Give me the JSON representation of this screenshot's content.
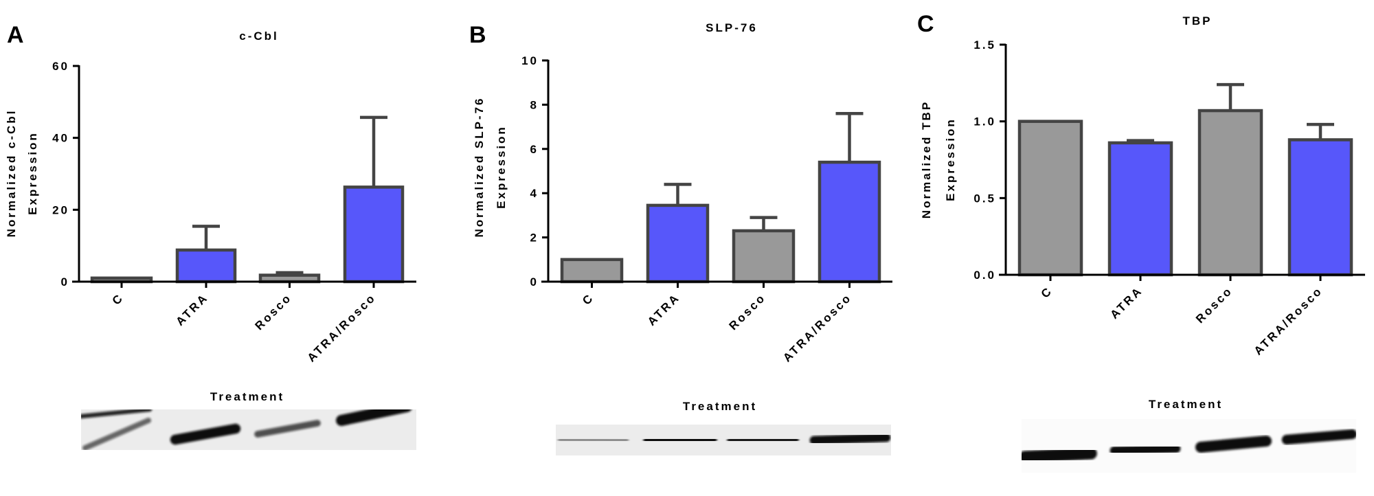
{
  "colors": {
    "control": "#999999",
    "treated": "#5757FA",
    "outline": "#444444",
    "axis": "#000000"
  },
  "chart_data": [
    {
      "panel": "A",
      "type": "bar",
      "title": "c-Cbl",
      "ylabel_lines": [
        "Normalized c-Cbl",
        "Expression"
      ],
      "xlabel": "Treatment",
      "categories": [
        "C",
        "ATRA",
        "Rosco",
        "ATRA/Rosco"
      ],
      "values": [
        1.0,
        8.8,
        1.8,
        26.3
      ],
      "error_upper": [
        1.0,
        15.4,
        2.5,
        45.7
      ],
      "bar_colors": [
        "control",
        "treated",
        "control",
        "treated"
      ],
      "ylim": [
        0,
        60
      ],
      "yticks": [
        "0",
        "20",
        "40",
        "60"
      ],
      "ytick_values": [
        0,
        20,
        40,
        60
      ],
      "grid": false
    },
    {
      "panel": "B",
      "type": "bar",
      "title": "SLP-76",
      "ylabel_lines": [
        "Normalized SLP-76",
        "Expression"
      ],
      "xlabel": "Treatment",
      "categories": [
        "C",
        "ATRA",
        "Rosco",
        "ATRA/Rosco"
      ],
      "values": [
        1.0,
        3.45,
        2.3,
        5.4
      ],
      "error_upper": [
        1.0,
        4.4,
        2.9,
        7.6
      ],
      "bar_colors": [
        "control",
        "treated",
        "control",
        "treated"
      ],
      "ylim": [
        0,
        10
      ],
      "yticks": [
        "0",
        "2",
        "4",
        "6",
        "8",
        "10"
      ],
      "ytick_values": [
        0,
        2,
        4,
        6,
        8,
        10
      ],
      "grid": false
    },
    {
      "panel": "C",
      "type": "bar",
      "title": "TBP",
      "ylabel_lines": [
        "Normalized TBP",
        "Expression"
      ],
      "xlabel": "Treatment",
      "categories": [
        "C",
        "ATRA",
        "Rosco",
        "ATRA/Rosco"
      ],
      "values": [
        1.0,
        0.86,
        1.07,
        0.88
      ],
      "error_upper": [
        1.0,
        0.875,
        1.24,
        0.98
      ],
      "bar_colors": [
        "control",
        "treated",
        "control",
        "treated"
      ],
      "ylim": [
        0,
        1.5
      ],
      "yticks": [
        "0.0",
        "0.5",
        "1.0",
        "1.5"
      ],
      "ytick_values": [
        0,
        0.5,
        1.0,
        1.5
      ],
      "grid": false
    }
  ]
}
